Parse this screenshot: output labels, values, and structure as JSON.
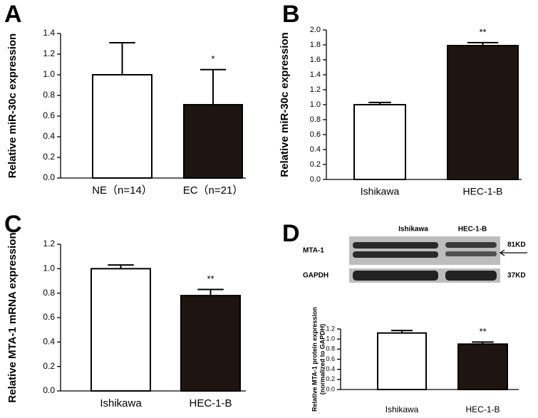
{
  "chart_data": [
    {
      "type": "bar",
      "panel": "A",
      "ylabel": "Relative miR-30c expression",
      "categories": [
        "NE（n=14）",
        "EC（n=21）"
      ],
      "values": [
        1.0,
        0.71
      ],
      "errors": [
        0.31,
        0.34
      ],
      "colors": [
        "#ffffff",
        "#1e1410"
      ],
      "ylim": [
        0,
        1.4
      ],
      "yticks": [
        {
          "value": 0,
          "label": "0.0"
        },
        0.2,
        0.4,
        0.6,
        0.8,
        {
          "value": 1,
          "label": "1.0"
        },
        1.2,
        1.4
      ],
      "annotations": [
        {
          "x": "EC（n=21）",
          "text": "*"
        }
      ]
    },
    {
      "type": "bar",
      "panel": "B",
      "ylabel": "Relative miR-30c expression",
      "categories": [
        "Ishikawa",
        "HEC-1-B"
      ],
      "values": [
        1.0,
        1.79
      ],
      "errors": [
        0.03,
        0.04
      ],
      "colors": [
        "#ffffff",
        "#1e1410"
      ],
      "ylim": [
        0,
        2.0
      ],
      "yticks": [
        {
          "value": 0,
          "label": "0.0"
        },
        0.2,
        0.4,
        0.6,
        0.8,
        {
          "value": 1,
          "label": "1.0"
        },
        1.2,
        1.4,
        1.6,
        1.8,
        {
          "value": 2,
          "label": "2.0"
        }
      ],
      "annotations": [
        {
          "x": "HEC-1-B",
          "text": "**"
        }
      ]
    },
    {
      "type": "bar",
      "panel": "C",
      "ylabel": "Relative MTA-1 mRNA expression",
      "categories": [
        "Ishikawa",
        "HEC-1-B"
      ],
      "values": [
        1.0,
        0.78
      ],
      "errors": [
        0.03,
        0.05
      ],
      "colors": [
        "#ffffff",
        "#1e1410"
      ],
      "ylim": [
        0,
        1.2
      ],
      "yticks": [
        {
          "value": 0,
          "label": "0.0"
        },
        0.2,
        0.4,
        0.6,
        0.8,
        {
          "value": 1,
          "label": "1.0"
        },
        1.2
      ],
      "annotations": [
        {
          "x": "HEC-1-B",
          "text": "**"
        }
      ]
    },
    {
      "type": "bar",
      "panel": "D",
      "ylabel": [
        "Relative MTA-1 protein expression",
        "(normalized to GAPDH)"
      ],
      "categories": [
        "Ishikawa",
        "HEC-1-B"
      ],
      "values": [
        1.12,
        0.9
      ],
      "errors": [
        0.05,
        0.04
      ],
      "colors": [
        "#ffffff",
        "#1e1410"
      ],
      "ylim": [
        0,
        1.2
      ],
      "yticks": [
        {
          "value": 0,
          "label": "0.0"
        },
        0.2,
        0.4,
        0.6,
        0.8,
        {
          "value": 1,
          "label": "1.0"
        },
        1.2
      ],
      "annotations": [
        {
          "x": "HEC-1-B",
          "text": "**"
        }
      ],
      "blot": {
        "lanes": [
          "Ishikawa",
          "HEC-1-B"
        ],
        "rows": [
          "MTA-1",
          "GAPDH"
        ],
        "sizes": [
          "81KD",
          "37KD"
        ]
      }
    }
  ]
}
